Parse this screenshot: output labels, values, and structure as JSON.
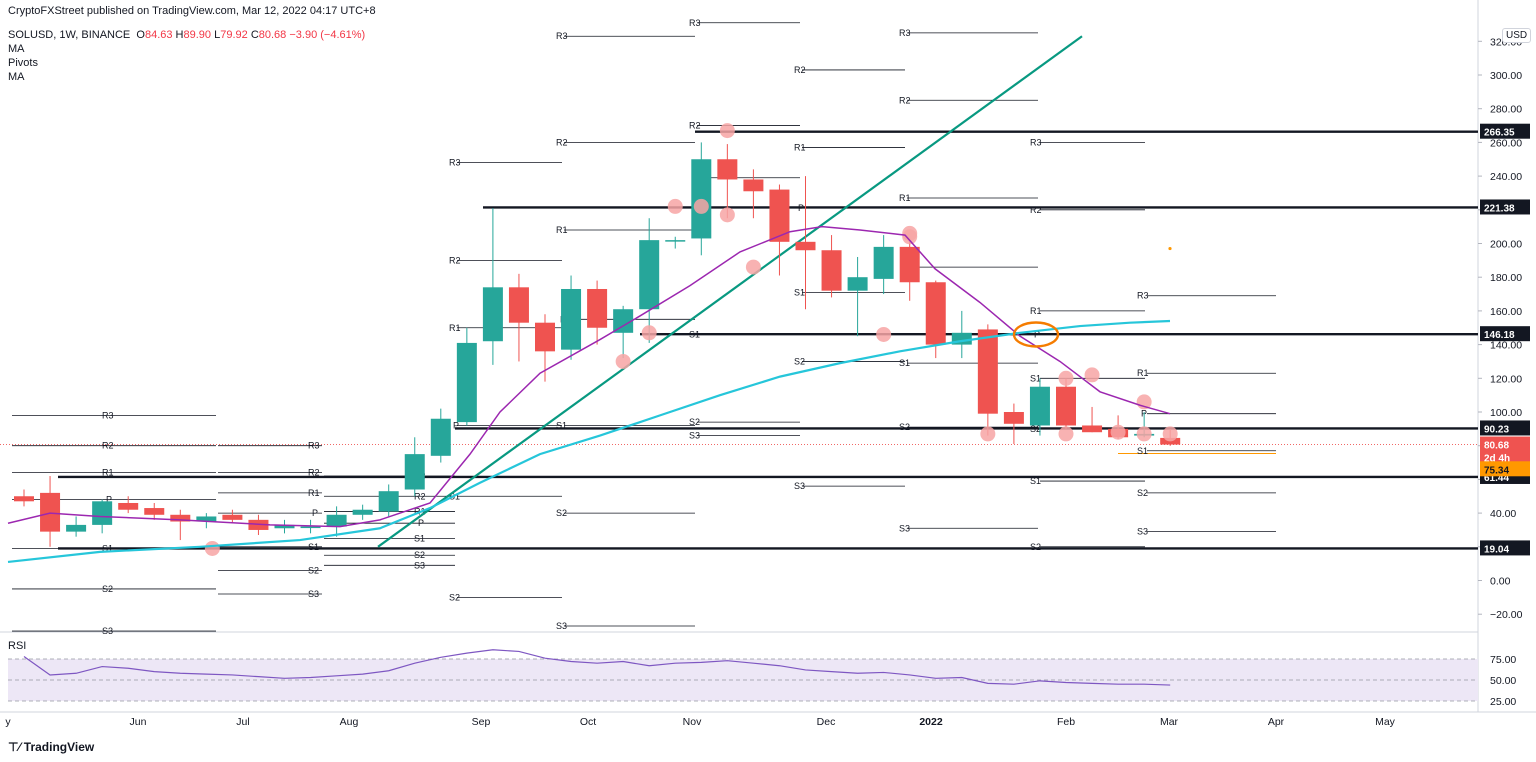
{
  "header": {
    "publisher": "CryptoFXStreet published on TradingView.com, Mar 12, 2022 04:17 UTC+8",
    "symbol": "SOLUSD, 1W, BINANCE",
    "o_label": "O",
    "o": "84.63",
    "h_label": "H",
    "h": "89.90",
    "l_label": "L",
    "l": "79.92",
    "c_label": "C",
    "c": "80.68",
    "change": "−3.90 (−4.61%)",
    "indicators": [
      "MA",
      "Pivots",
      "MA"
    ]
  },
  "currency_button": "USD",
  "brand": "TradingView",
  "rsi_label": "RSI",
  "colors": {
    "up": "#26a69a",
    "down": "#ef5350",
    "ma_fast": "#9c27b0",
    "ma_slow": "#26c6da",
    "trendline": "#089981",
    "marker": "#f7a5a5",
    "ellipse": "#f57c00",
    "rsi": "#7e57c2",
    "rsi_band": "#ede7f6",
    "tag_dark": "#131722",
    "tag_price": "#ef5350",
    "tag_orange": "#ff9800"
  },
  "chart_data": {
    "type": "candlestick",
    "y_axis": {
      "ticks": [
        "320.00",
        "300.00",
        "280.00",
        "260.00",
        "240.00",
        "220.00",
        "200.00",
        "180.00",
        "160.00",
        "140.00",
        "120.00",
        "100.00",
        "80.00",
        "60.00",
        "40.00",
        "20.00",
        "0.00",
        "−20.00"
      ],
      "ylim": [
        -28,
        330
      ]
    },
    "x_axis": {
      "ticks": [
        "y",
        "Jun",
        "Jul",
        "Aug",
        "Sep",
        "Oct",
        "Nov",
        "Dec",
        "2022",
        "Feb",
        "Mar",
        "Apr",
        "May"
      ]
    },
    "candles": [
      {
        "o": 50,
        "h": 54,
        "l": 44,
        "c": 47
      },
      {
        "o": 52,
        "h": 62,
        "l": 20,
        "c": 29
      },
      {
        "o": 29,
        "h": 38,
        "l": 26,
        "c": 33
      },
      {
        "o": 33,
        "h": 48,
        "l": 28,
        "c": 47
      },
      {
        "o": 46,
        "h": 50,
        "l": 40,
        "c": 42
      },
      {
        "o": 43,
        "h": 46,
        "l": 36,
        "c": 39
      },
      {
        "o": 39,
        "h": 42,
        "l": 24,
        "c": 35
      },
      {
        "o": 35,
        "h": 40,
        "l": 31,
        "c": 38
      },
      {
        "o": 39,
        "h": 42,
        "l": 34,
        "c": 36
      },
      {
        "o": 36,
        "h": 39,
        "l": 27,
        "c": 30
      },
      {
        "o": 31,
        "h": 36,
        "l": 28,
        "c": 33
      },
      {
        "o": 32,
        "h": 36,
        "l": 28,
        "c": 32
      },
      {
        "o": 32,
        "h": 44,
        "l": 26,
        "c": 39
      },
      {
        "o": 39,
        "h": 45,
        "l": 36,
        "c": 42
      },
      {
        "o": 41,
        "h": 57,
        "l": 38,
        "c": 53
      },
      {
        "o": 54,
        "h": 85,
        "l": 50,
        "c": 75
      },
      {
        "o": 74,
        "h": 102,
        "l": 70,
        "c": 96
      },
      {
        "o": 94,
        "h": 150,
        "l": 92,
        "c": 141
      },
      {
        "o": 142,
        "h": 221,
        "l": 128,
        "c": 174
      },
      {
        "o": 174,
        "h": 182,
        "l": 130,
        "c": 153
      },
      {
        "o": 153,
        "h": 158,
        "l": 118,
        "c": 136
      },
      {
        "o": 137,
        "h": 181,
        "l": 131,
        "c": 173
      },
      {
        "o": 173,
        "h": 178,
        "l": 140,
        "c": 150
      },
      {
        "o": 147,
        "h": 163,
        "l": 132,
        "c": 161
      },
      {
        "o": 161,
        "h": 215,
        "l": 141,
        "c": 202
      },
      {
        "o": 202,
        "h": 204,
        "l": 197,
        "c": 202
      },
      {
        "o": 203,
        "h": 260,
        "l": 193,
        "c": 250
      },
      {
        "o": 250,
        "h": 259,
        "l": 215,
        "c": 238
      },
      {
        "o": 238,
        "h": 244,
        "l": 215,
        "c": 231
      },
      {
        "o": 232,
        "h": 235,
        "l": 181,
        "c": 201
      },
      {
        "o": 201,
        "h": 240,
        "l": 161,
        "c": 196
      },
      {
        "o": 196,
        "h": 205,
        "l": 168,
        "c": 172
      },
      {
        "o": 172,
        "h": 192,
        "l": 145,
        "c": 180
      },
      {
        "o": 179,
        "h": 205,
        "l": 170,
        "c": 198
      },
      {
        "o": 198,
        "h": 203,
        "l": 166,
        "c": 177
      },
      {
        "o": 177,
        "h": 178,
        "l": 132,
        "c": 140
      },
      {
        "o": 140,
        "h": 160,
        "l": 132,
        "c": 147
      },
      {
        "o": 149,
        "h": 152,
        "l": 86,
        "c": 99
      },
      {
        "o": 100,
        "h": 105,
        "l": 81,
        "c": 93
      },
      {
        "o": 92,
        "h": 120,
        "l": 86,
        "c": 115
      },
      {
        "o": 115,
        "h": 120,
        "l": 90,
        "c": 92
      },
      {
        "o": 92,
        "h": 103,
        "l": 88,
        "c": 88
      },
      {
        "o": 90,
        "h": 98,
        "l": 84,
        "c": 85
      },
      {
        "o": 86,
        "h": 100,
        "l": 85,
        "c": 87
      },
      {
        "o": 84.63,
        "h": 89.9,
        "l": 79.92,
        "c": 80.68
      }
    ],
    "levels": [
      "266.35",
      "221.38",
      "146.18",
      "90.23",
      "61.44",
      "19.04"
    ],
    "price_tags": [
      {
        "label": "80.68",
        "value": 80.68,
        "color": "#ef5350"
      },
      {
        "label": "2d 4h",
        "value": 73,
        "color": "#ef5350"
      },
      {
        "label": "75.34",
        "value": 66,
        "color": "#ff9800"
      }
    ],
    "rsi": {
      "values": [
        78,
        56,
        58,
        66,
        64,
        60,
        58,
        57,
        56,
        54,
        52,
        53,
        55,
        57,
        61,
        70,
        77,
        82,
        86,
        84,
        76,
        72,
        70,
        72,
        67,
        70,
        71,
        73,
        70,
        67,
        62,
        60,
        58,
        59,
        56,
        52,
        53,
        46,
        45,
        49,
        47,
        46,
        45,
        45,
        44
      ],
      "levels": [
        "75.00",
        "50.00",
        "25.00"
      ]
    },
    "pivot_labels": [
      "R3",
      "R2",
      "R1",
      "P",
      "S1",
      "S2",
      "S3"
    ]
  }
}
